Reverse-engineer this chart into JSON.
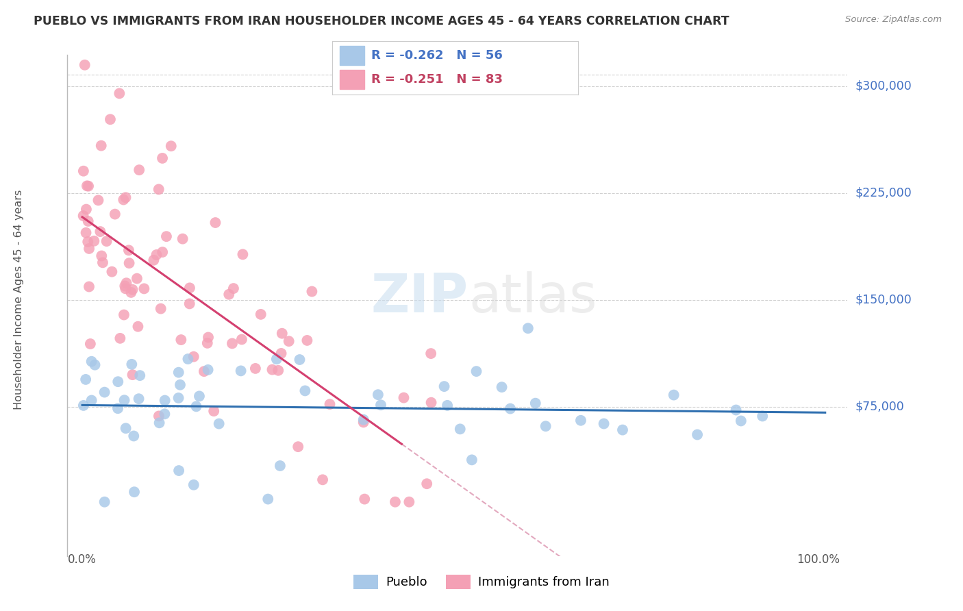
{
  "title": "PUEBLO VS IMMIGRANTS FROM IRAN HOUSEHOLDER INCOME AGES 45 - 64 YEARS CORRELATION CHART",
  "source": "Source: ZipAtlas.com",
  "ylabel": "Householder Income Ages 45 - 64 years",
  "ytick_vals": [
    75000,
    150000,
    225000,
    300000
  ],
  "ytick_labels": [
    "$75,000",
    "$150,000",
    "$225,000",
    "$300,000"
  ],
  "xlim": [
    0.0,
    100.0
  ],
  "ylim": [
    0,
    320000
  ],
  "pueblo_color": "#a8c8e8",
  "iran_color": "#f4a0b5",
  "pueblo_line_color": "#3070b0",
  "iran_line_color": "#d44070",
  "dashed_line_color": "#e0a0b8",
  "grid_color": "#cccccc",
  "legend_R_pueblo": "R = -0.262",
  "legend_N_pueblo": "N = 56",
  "legend_R_iran": "R = -0.251",
  "legend_N_iran": "N = 83",
  "watermark": "ZIPatlas",
  "axis_label_color": "#4472c4",
  "text_color": "#555555",
  "title_color": "#333333",
  "source_color": "#888888",
  "legend_text_color": "#4472c4",
  "iran_legend_text_color": "#c04060"
}
